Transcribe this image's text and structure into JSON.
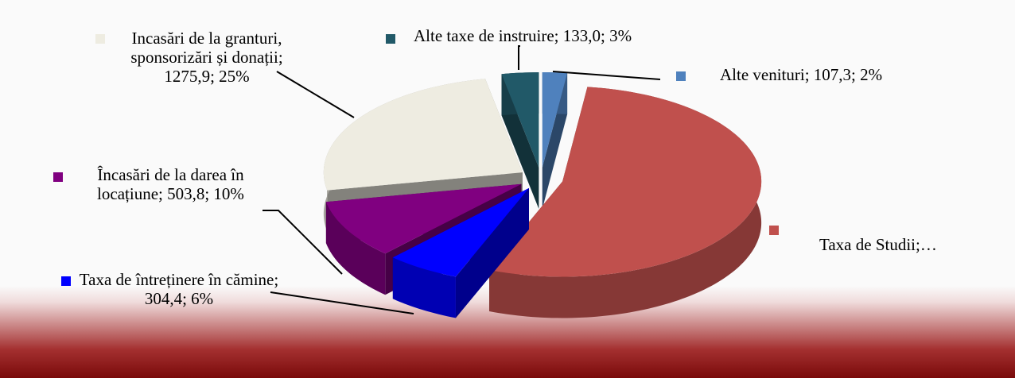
{
  "chart_data": {
    "type": "pie3d",
    "categories": [
      "Alte venituri",
      "Taxa de Studii",
      "Taxa de întreținere în cămine",
      "Încasări de la darea în locațiune",
      "Incasări de la granturi, sponsorizări și donații",
      "Alte taxe de instruire"
    ],
    "values": [
      2,
      54,
      6,
      10,
      25,
      3
    ],
    "value_labels": [
      "Alte venituri; 107,3; 2%",
      "Taxa de Studii;…",
      "Taxa de întreținere în cămine; 304,4; 6%",
      "Încasări de la darea în locațiune; 503,8; 10%",
      "Incasări de la granturi, sponsorizări și donații; 1275,9; 25%",
      "Alte taxe de instruire; 133,0; 3%"
    ],
    "colors": [
      "#4f81bd",
      "#c0504d",
      "#0000ff",
      "#800080",
      "#eeece1",
      "#215968"
    ]
  }
}
